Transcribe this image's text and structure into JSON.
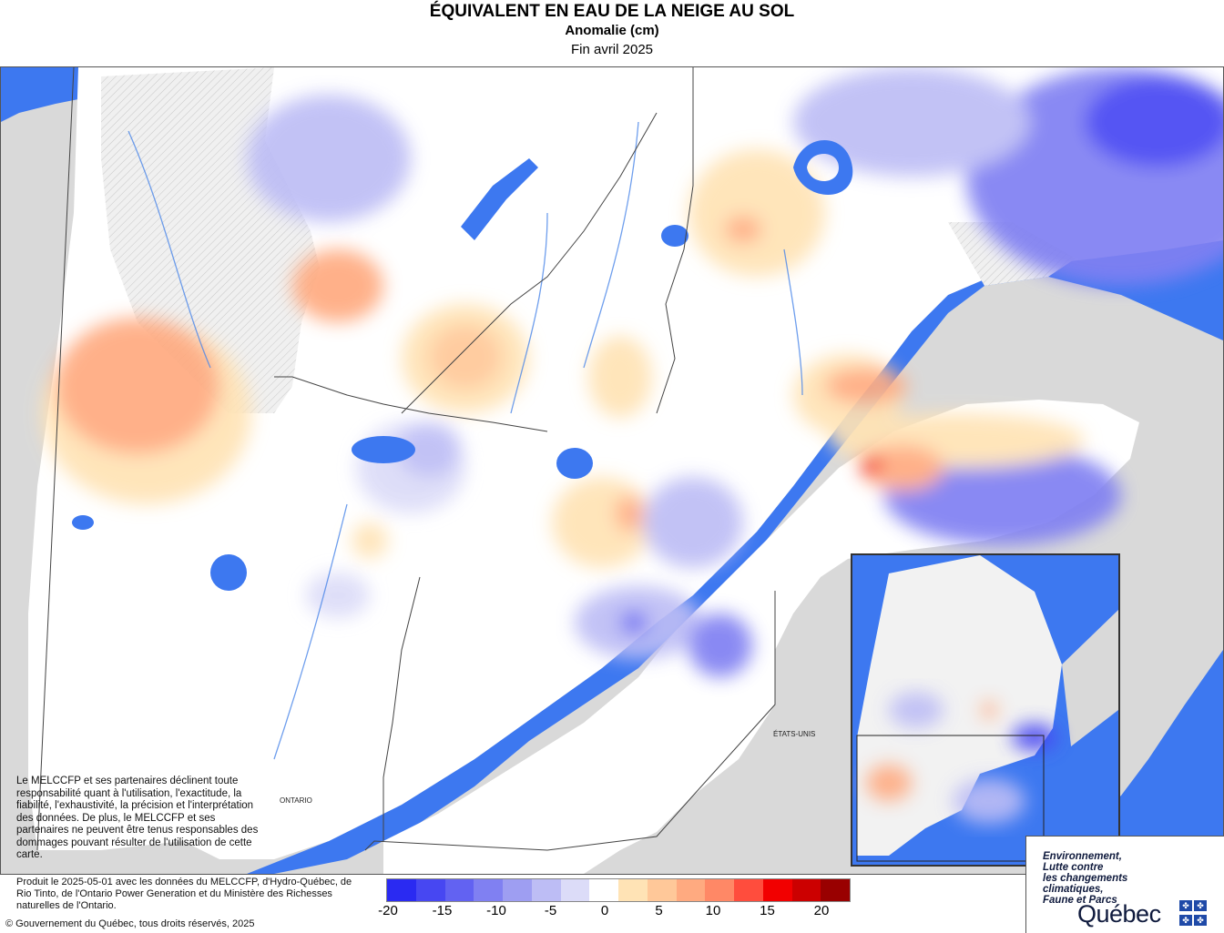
{
  "header": {
    "title": "ÉQUIVALENT EN EAU DE LA NEIGE AU SOL",
    "subtitle": "Anomalie (cm)",
    "period": "Fin avril 2025"
  },
  "map": {
    "labels": {
      "ontario": "ONTARIO",
      "etats_unis": "ÉTATS-UNIS"
    },
    "colors": {
      "water": "#3d78f0",
      "land_outside": "#d9d9d9",
      "no_data_hatch": "#eeeeee",
      "province": "#ffffff"
    }
  },
  "disclaimer": "Le MELCCFP et ses partenaires déclinent toute responsabilité quant à l'utilisation, l'exactitude, la fiabilité, l'exhaustivité, la précision et l'interprétation des données. De plus, le MELCCFP et ses partenaires ne peuvent être tenus responsables des dommages pouvant résulter de l'utilisation de cette carte.",
  "source": {
    "produced": "Produit le 2025-05-01 avec les données du MELCCFP, d'Hydro-Québec, de Rio Tinto, de l'Ontario Power Generation et du Ministère des Richesses naturelles de l'Ontario.",
    "copyright": "© Gouvernement du Québec, tous droits réservés, 2025"
  },
  "legend": {
    "colors": [
      "#2a2af2",
      "#4747f2",
      "#6262f2",
      "#8080f2",
      "#9e9ef2",
      "#bdbdf5",
      "#dcdcf8",
      "#ffffff",
      "#ffe3b5",
      "#ffc899",
      "#ffaa80",
      "#ff8866",
      "#ff4d3d",
      "#f20000",
      "#cc0000",
      "#990000"
    ],
    "ticks": [
      "-20",
      "-15",
      "-10",
      "-5",
      "0",
      "5",
      "10",
      "15",
      "20"
    ]
  },
  "logo": {
    "ministry_lines": [
      "Environnement,",
      "Lutte contre",
      "les changements",
      "climatiques,",
      "Faune et Parcs"
    ],
    "wordmark": "Québec"
  }
}
